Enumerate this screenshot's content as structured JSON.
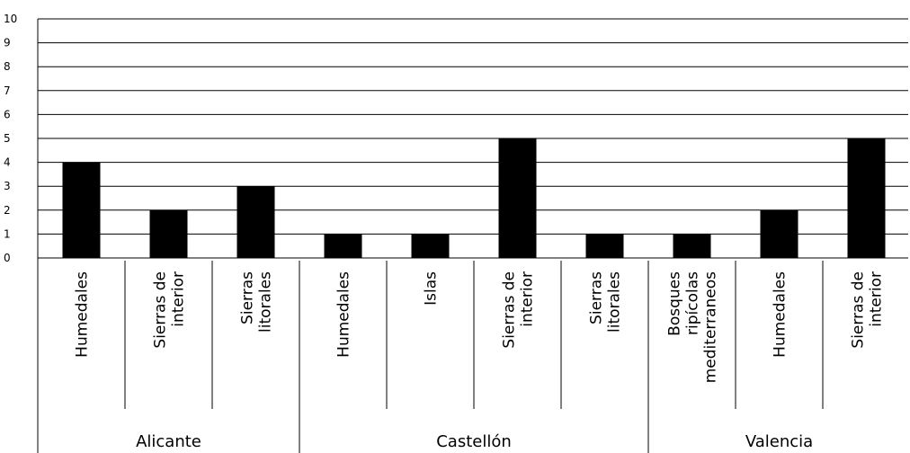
{
  "chart_data": {
    "type": "bar",
    "title": "",
    "xlabel": "",
    "ylabel": "",
    "ylim": [
      0,
      10
    ],
    "yticks": [
      "0",
      "1",
      "2",
      "3",
      "4",
      "5",
      "6",
      "7",
      "8",
      "9",
      "10"
    ],
    "grid": true,
    "legend": "none",
    "bar_color": "#000000",
    "groups": [
      {
        "name": "Alicante",
        "categories": [
          {
            "label": [
              "Humedales"
            ],
            "value": 4
          },
          {
            "label": [
              "Sierras de",
              "interior"
            ],
            "value": 2
          },
          {
            "label": [
              "Sierras",
              "litorales"
            ],
            "value": 3
          }
        ]
      },
      {
        "name": "Castellón",
        "categories": [
          {
            "label": [
              "Humedales"
            ],
            "value": 1
          },
          {
            "label": [
              "Islas"
            ],
            "value": 1
          },
          {
            "label": [
              "Sierras de",
              "interior"
            ],
            "value": 5
          },
          {
            "label": [
              "Sierras",
              "litorales"
            ],
            "value": 1
          }
        ]
      },
      {
        "name": "Valencia",
        "categories": [
          {
            "label": [
              "Bosques",
              "ripícolas",
              "mediterraneos"
            ],
            "value": 1
          },
          {
            "label": [
              "Humedales"
            ],
            "value": 2
          },
          {
            "label": [
              "Sierras de",
              "interior"
            ],
            "value": 5
          }
        ]
      }
    ]
  }
}
